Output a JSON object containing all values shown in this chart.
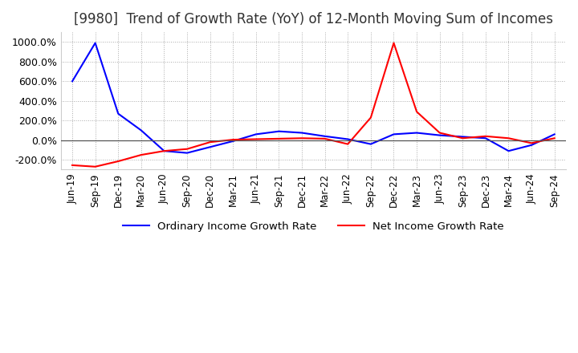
{
  "title": "[9980]  Trend of Growth Rate (YoY) of 12-Month Moving Sum of Incomes",
  "title_fontsize": 12,
  "ylim": [
    -300,
    1100
  ],
  "yticks": [
    -200,
    0,
    200,
    400,
    600,
    800,
    1000
  ],
  "background_color": "#ffffff",
  "grid_color": "#aaaaaa",
  "grid_style": "dotted",
  "ordinary_color": "#0000ff",
  "net_color": "#ff0000",
  "legend_labels": [
    "Ordinary Income Growth Rate",
    "Net Income Growth Rate"
  ],
  "dates": [
    "Jun-19",
    "Sep-19",
    "Dec-19",
    "Mar-20",
    "Jun-20",
    "Sep-20",
    "Dec-20",
    "Mar-21",
    "Jun-21",
    "Sep-21",
    "Dec-21",
    "Mar-22",
    "Jun-22",
    "Sep-22",
    "Dec-22",
    "Mar-23",
    "Jun-23",
    "Sep-23",
    "Dec-23",
    "Mar-24",
    "Jun-24",
    "Sep-24"
  ],
  "ordinary_income": [
    600,
    990,
    270,
    100,
    -110,
    -130,
    -70,
    -10,
    60,
    90,
    75,
    40,
    10,
    -40,
    60,
    75,
    50,
    35,
    20,
    -110,
    -50,
    60
  ],
  "net_income": [
    -255,
    -270,
    -215,
    -150,
    -110,
    -90,
    -20,
    5,
    10,
    15,
    20,
    15,
    -40,
    230,
    990,
    290,
    75,
    20,
    40,
    20,
    -30,
    20
  ]
}
